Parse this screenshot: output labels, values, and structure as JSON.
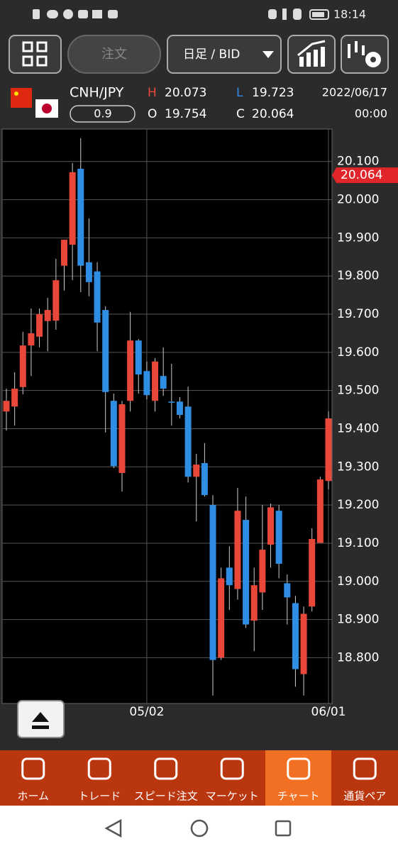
{
  "status_bar": {
    "time": "18:14"
  },
  "toolbar": {
    "order_button": "注文",
    "period_select": "日足 / BID"
  },
  "quote": {
    "symbol": "CNH/JPY",
    "spread": "0.9",
    "high_label": "H",
    "high": "20.073",
    "low_label": "L",
    "low": "19.723",
    "open_label": "O",
    "open": "19.754",
    "close_label": "C",
    "close": "20.064",
    "date": "2022/06/17",
    "time": "00:00"
  },
  "chart_data": {
    "type": "candlestick",
    "categories": [
      null,
      null,
      null,
      null,
      null,
      null,
      null,
      null,
      null,
      null,
      null,
      null,
      null,
      null,
      null,
      null,
      null,
      "05/02",
      null,
      null,
      null,
      null,
      null,
      null,
      null,
      null,
      null,
      null,
      null,
      null,
      null,
      null,
      null,
      null,
      null,
      null,
      null,
      null,
      null,
      "06/01"
    ],
    "series": [
      {
        "up_color": "#e8473a",
        "down_color": "#2f8de4",
        "open": [
          19.445,
          19.458,
          19.509,
          19.618,
          19.641,
          19.682,
          19.683,
          19.827,
          19.882,
          20.081,
          19.836,
          19.812,
          19.711,
          19.473,
          19.284,
          19.473,
          19.631,
          19.551,
          19.473,
          19.538,
          19.471,
          19.471,
          19.458,
          19.274,
          19.31,
          19.2,
          18.8,
          19.036,
          18.98,
          19.161,
          18.897,
          18.971,
          19.096,
          19.185,
          18.995,
          18.943,
          18.757,
          18.934,
          19.101,
          19.263
        ],
        "high": [
          19.505,
          19.548,
          19.654,
          19.715,
          19.715,
          19.743,
          19.845,
          19.895,
          20.096,
          20.161,
          19.951,
          19.836,
          19.721,
          19.492,
          19.473,
          19.706,
          19.635,
          19.576,
          19.585,
          19.613,
          19.57,
          19.483,
          19.51,
          19.334,
          19.362,
          19.226,
          19.036,
          19.092,
          19.245,
          19.222,
          19.036,
          19.2,
          19.204,
          19.2,
          19.018,
          18.962,
          18.934,
          19.139,
          19.274,
          19.445
        ],
        "low": [
          19.395,
          19.408,
          19.49,
          19.538,
          19.613,
          19.603,
          19.659,
          19.762,
          19.789,
          19.758,
          19.747,
          19.603,
          19.39,
          19.297,
          19.235,
          19.445,
          19.492,
          19.477,
          19.445,
          19.486,
          19.408,
          19.427,
          19.259,
          19.157,
          19.222,
          18.701,
          18.794,
          18.925,
          18.952,
          18.878,
          18.817,
          18.925,
          19.036,
          19.008,
          18.887,
          18.724,
          18.701,
          18.921,
          19.101,
          19.241
        ],
        "close": [
          19.473,
          19.505,
          19.618,
          19.65,
          19.7,
          19.711,
          19.789,
          19.895,
          20.072,
          19.827,
          19.784,
          19.678,
          19.496,
          19.302,
          19.464,
          19.631,
          19.542,
          19.488,
          19.576,
          19.505,
          19.468,
          19.436,
          19.274,
          19.306,
          19.226,
          18.794,
          19.008,
          18.99,
          19.185,
          18.887,
          18.99,
          19.083,
          19.194,
          19.046,
          18.958,
          18.77,
          18.915,
          19.111,
          19.267,
          19.427
        ]
      }
    ],
    "ylim": [
      18.68,
      20.185
    ],
    "yticks": [
      {
        "value": 20.1,
        "label": "20.100"
      },
      {
        "value": 20.0,
        "label": "20.000"
      },
      {
        "value": 19.9,
        "label": "19.900"
      },
      {
        "value": 19.8,
        "label": "19.800"
      },
      {
        "value": 19.7,
        "label": "19.700"
      },
      {
        "value": 19.6,
        "label": "19.600"
      },
      {
        "value": 19.5,
        "label": "19.500"
      },
      {
        "value": 19.4,
        "label": "19.400"
      },
      {
        "value": 19.3,
        "label": "19.300"
      },
      {
        "value": 19.2,
        "label": "19.200"
      },
      {
        "value": 19.1,
        "label": "19.100"
      },
      {
        "value": 19.0,
        "label": "19.000"
      },
      {
        "value": 18.9,
        "label": "18.900"
      },
      {
        "value": 18.8,
        "label": "18.800"
      }
    ],
    "current_price": {
      "value": 20.064,
      "label": "20.064"
    },
    "grid": true
  },
  "nav": {
    "items": [
      "ホーム",
      "トレード",
      "スピード注文",
      "マーケット",
      "チャート",
      "通貨ペア"
    ]
  }
}
